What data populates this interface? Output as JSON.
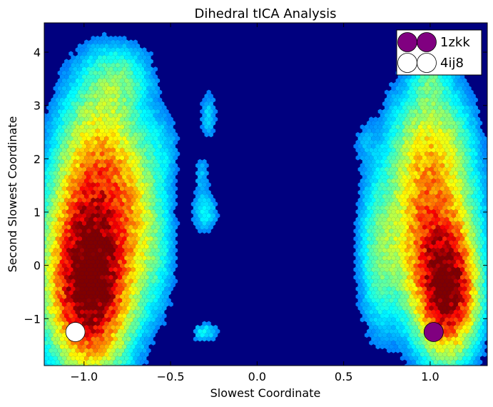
{
  "chart_data": {
    "type": "hexbin",
    "title": "Dihedral tICA Analysis",
    "xlabel": "Slowest Coordinate",
    "ylabel": "Second Slowest Coordinate",
    "xlim": [
      -1.23,
      1.33
    ],
    "ylim": [
      -1.88,
      4.55
    ],
    "x_ticks": [
      -1.0,
      -0.5,
      0.0,
      0.5,
      1.0
    ],
    "x_tick_labels": [
      "−1.0",
      "−0.5",
      "0.0",
      "0.5",
      "1.0"
    ],
    "y_ticks": [
      -1,
      0,
      1,
      2,
      3,
      4
    ],
    "y_tick_labels": [
      "−1",
      "0",
      "1",
      "2",
      "3",
      "4"
    ],
    "colormap": "jet",
    "background_color": "#00007f",
    "grid": false,
    "legend_position": "top-right",
    "density_clusters": [
      {
        "x": -0.97,
        "y": -0.5,
        "sx": 0.14,
        "sy": 0.9,
        "w": 1.0
      },
      {
        "x": -0.95,
        "y": 0.8,
        "sx": 0.15,
        "sy": 1.0,
        "w": 0.55
      },
      {
        "x": -0.9,
        "y": 2.2,
        "sx": 0.14,
        "sy": 0.9,
        "w": 0.28
      },
      {
        "x": -0.8,
        "y": 3.5,
        "sx": 0.12,
        "sy": 0.4,
        "w": 0.14
      },
      {
        "x": -0.72,
        "y": 1.0,
        "sx": 0.1,
        "sy": 0.9,
        "w": 0.2
      },
      {
        "x": -0.6,
        "y": 0.3,
        "sx": 0.08,
        "sy": 0.8,
        "w": 0.1
      },
      {
        "x": -0.55,
        "y": 2.2,
        "sx": 0.07,
        "sy": 0.5,
        "w": 0.06
      },
      {
        "x": -0.28,
        "y": 2.8,
        "sx": 0.03,
        "sy": 0.3,
        "w": 0.08
      },
      {
        "x": -0.3,
        "y": 1.0,
        "sx": 0.05,
        "sy": 0.25,
        "w": 0.1
      },
      {
        "x": -0.32,
        "y": 1.7,
        "sx": 0.03,
        "sy": 0.25,
        "w": 0.06
      },
      {
        "x": -0.3,
        "y": -1.25,
        "sx": 0.05,
        "sy": 0.12,
        "w": 0.1
      },
      {
        "x": 1.1,
        "y": -0.5,
        "sx": 0.1,
        "sy": 0.7,
        "w": 0.95
      },
      {
        "x": 1.0,
        "y": 0.6,
        "sx": 0.15,
        "sy": 1.0,
        "w": 0.55
      },
      {
        "x": 1.0,
        "y": 2.2,
        "sx": 0.14,
        "sy": 0.8,
        "w": 0.28
      },
      {
        "x": 1.0,
        "y": 3.5,
        "sx": 0.06,
        "sy": 0.3,
        "w": 0.12
      },
      {
        "x": 0.7,
        "y": 0.2,
        "sx": 0.07,
        "sy": 0.9,
        "w": 0.15
      },
      {
        "x": 0.62,
        "y": 2.3,
        "sx": 0.05,
        "sy": 0.3,
        "w": 0.04
      }
    ],
    "series": [
      {
        "name": "1zkk",
        "color": "#800080",
        "points": [
          {
            "x": 1.02,
            "y": -1.25
          }
        ]
      },
      {
        "name": "4ij8",
        "color": "#ffffff",
        "points": [
          {
            "x": -1.05,
            "y": -1.25
          }
        ]
      }
    ]
  }
}
